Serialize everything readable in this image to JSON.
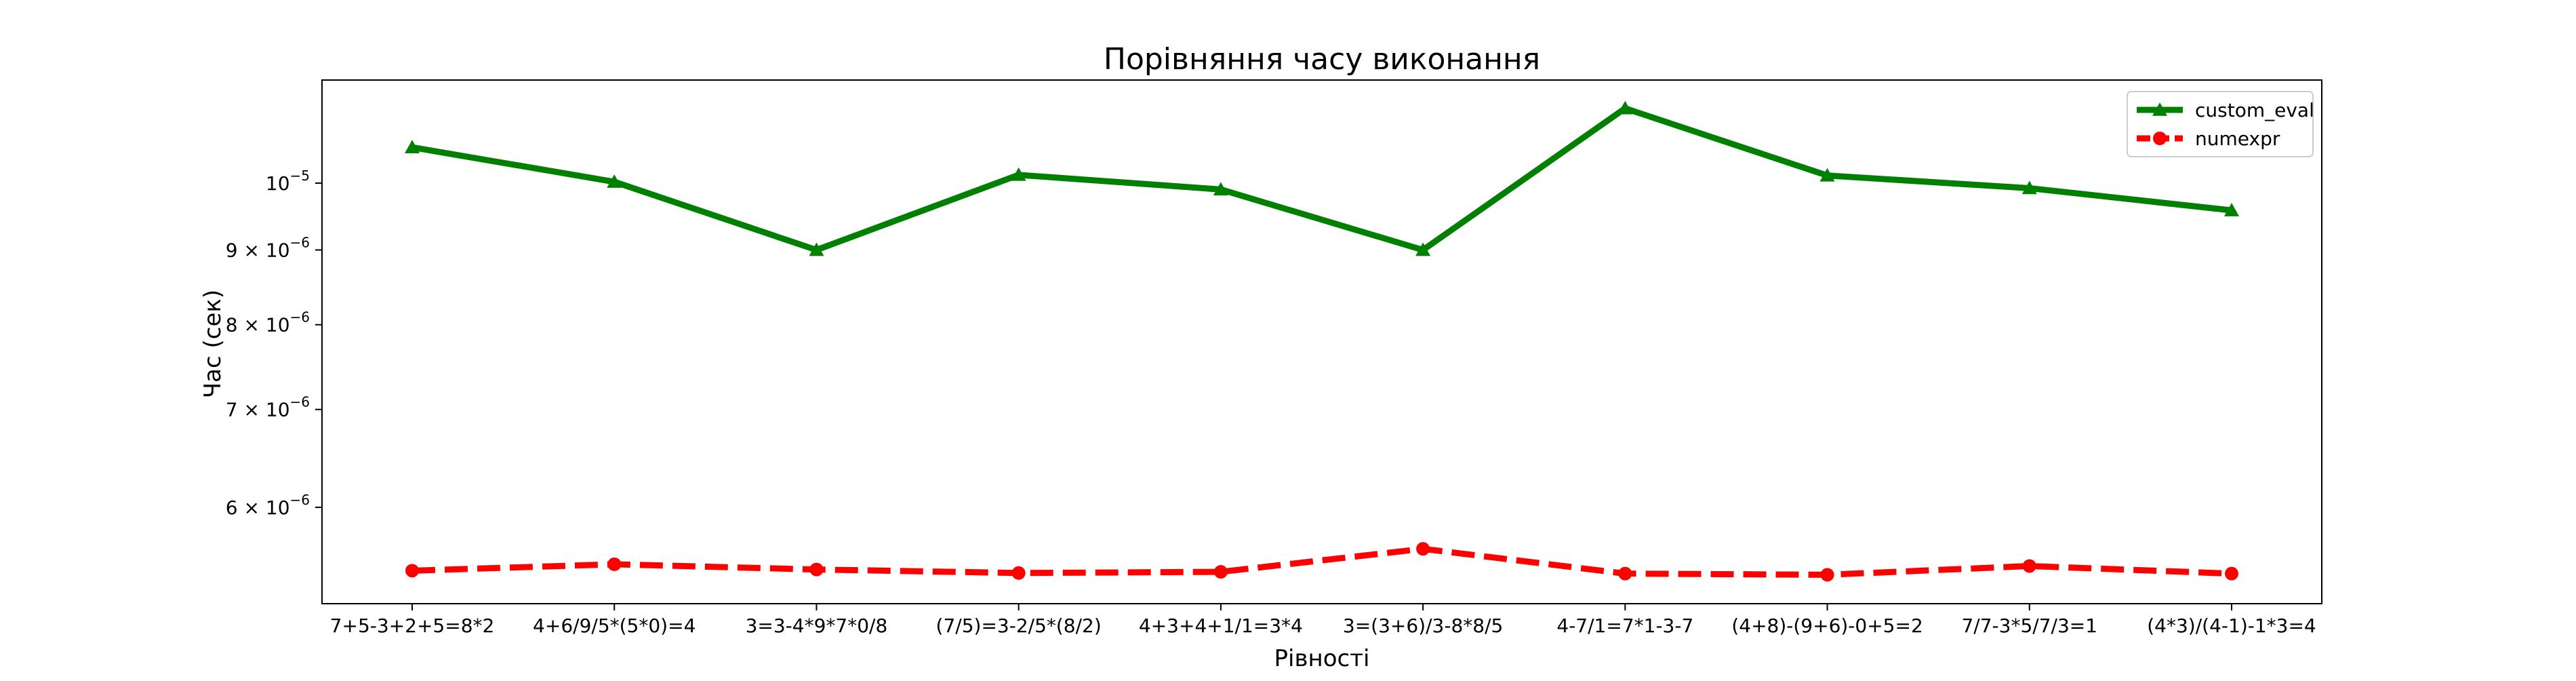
{
  "chart_data": {
    "type": "line",
    "title": "Порівняння часу виконання",
    "xlabel": "Рівності",
    "ylabel": "Час (сек)",
    "yscale": "log",
    "ylim": [
      5.35e-06,
      1.125e-05
    ],
    "grid": false,
    "legend_position": "top-right",
    "categories": [
      "7+5-3+2+5=8*2",
      "4+6/9/5*(5*0)=4",
      "3=3-4*9*7*0/8",
      "(7/5)=3-2/5*(8/2)",
      "4+3+4+1/1=3*4",
      "3=(3+6)/3-8*8/5",
      "4-7/1=7*1-3-7",
      "(4+8)-(9+6)-0+5=2",
      "7/7-3*5/7/3=1",
      "(4*3)/(4-1)-1*3=4"
    ],
    "y_ticks": [
      {
        "value": 1e-05,
        "mantissa": "",
        "exponent": "−5"
      },
      {
        "value": 9e-06,
        "mantissa": "9",
        "exponent": "−6"
      },
      {
        "value": 8e-06,
        "mantissa": "8",
        "exponent": "−6"
      },
      {
        "value": 7e-06,
        "mantissa": "7",
        "exponent": "−6"
      },
      {
        "value": 6e-06,
        "mantissa": "6",
        "exponent": "−6"
      }
    ],
    "series": [
      {
        "name": "custom_eval",
        "color": "#008000",
        "marker": "triangle",
        "linestyle": "solid",
        "values": [
          1.058e-05,
          1.002e-05,
          9e-06,
          1.013e-05,
          9.9e-06,
          9e-06,
          1.125e-05,
          1.012e-05,
          9.92e-06,
          9.58e-06
        ]
      },
      {
        "name": "numexpr",
        "color": "#ff0000",
        "marker": "circle",
        "linestyle": "dashed",
        "values": [
          5.43e-06,
          5.485e-06,
          5.44e-06,
          5.41e-06,
          5.42e-06,
          5.62e-06,
          5.405e-06,
          5.395e-06,
          5.47e-06,
          5.405e-06
        ]
      }
    ]
  }
}
